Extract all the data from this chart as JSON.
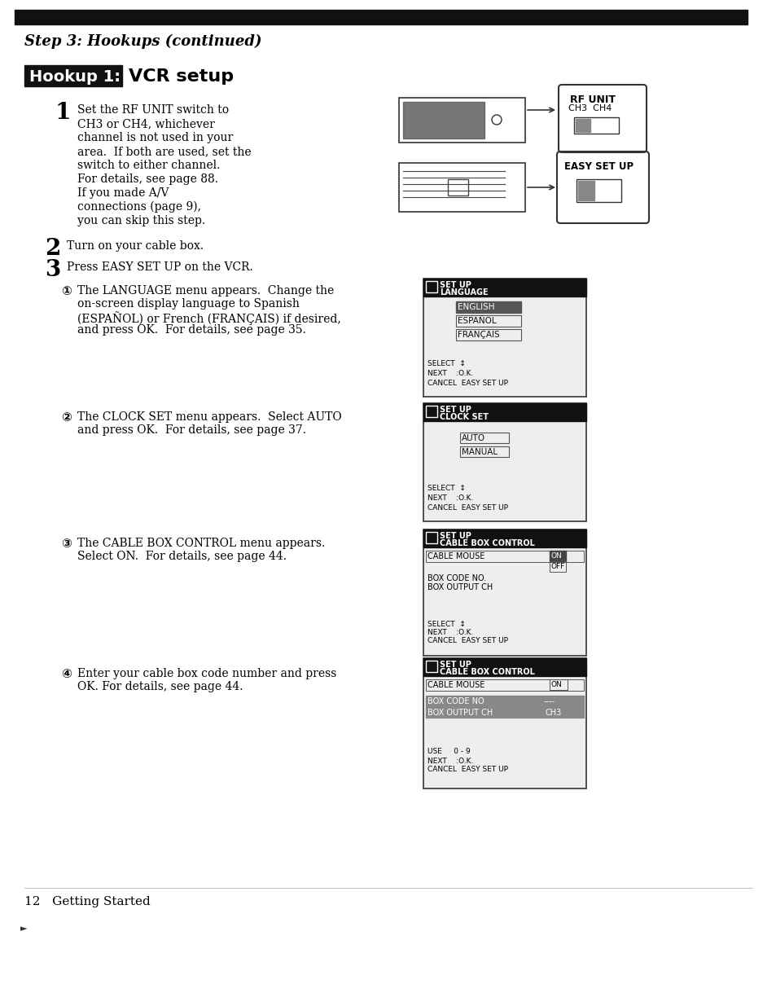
{
  "bg_color": "#f5f5f0",
  "page_bg": "#ffffff",
  "top_bar_color": "#1a1a1a",
  "header_italic_bold": "Step 3: Hookups (continued)",
  "hookup_box_color": "#1a1a1a",
  "hookup_box_text": "Hookup 1:",
  "hookup_title": "  VCR setup",
  "step1_number": "1",
  "step1_text": "Set the RF UNIT switch to\nCH3 or CH4, whichever\nchannel is not used in your\narea.  If both are used, set the\nswitch to either channel.\nFor details, see page 88.\nIf you made A/V\nconnections (page 9),\nyou can skip this step.",
  "step2_number": "2",
  "step2_text": "Turn on your cable box.",
  "step3_number": "3",
  "step3_text": "Press EASY SET UP on the VCR.",
  "bullet1_text": "The LANGUAGE menu appears.  Change the\non-screen display language to Spanish\n(ESPAÑOL) or French (FRANÇAIS) if desired,\nand press OK.  For details, see page 35.",
  "bullet2_text": "The CLOCK SET menu appears.  Select AUTO\nand press OK.  For details, see page 37.",
  "bullet3_text": "The CABLE BOX CONTROL menu appears.\nSelect ON.  For details, see page 44.",
  "bullet4_text": "Enter your cable box code number and press\nOK. For details, see page 44.",
  "page_footer": "12   Getting Started"
}
